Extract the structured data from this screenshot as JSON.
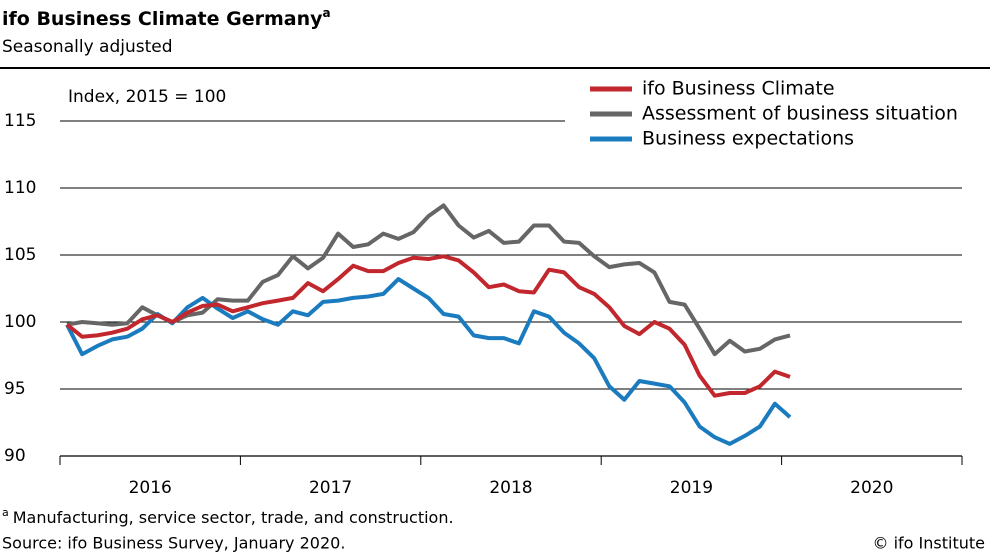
{
  "chart_data": {
    "type": "line",
    "title": "ifo Business Climate Germany",
    "footnote_marker": "a",
    "subtitle": "Seasonally adjusted",
    "y_axis_label": "Index, 2015 = 100",
    "x_labels": [
      "2016",
      "2017",
      "2018",
      "2019",
      "2020"
    ],
    "ylim": [
      90,
      115
    ],
    "yticks": [
      90,
      95,
      100,
      105,
      110,
      115
    ],
    "grid": true,
    "legend_position": "upper right",
    "series": [
      {
        "name": "ifo Business Climate",
        "color": "#c1272d",
        "values": [
          99.8,
          98.9,
          99.0,
          99.2,
          99.5,
          100.2,
          100.5,
          100.0,
          100.7,
          101.2,
          101.3,
          100.8,
          101.1,
          101.4,
          101.6,
          101.8,
          102.9,
          102.3,
          103.2,
          104.2,
          103.8,
          103.8,
          104.4,
          104.8,
          104.7,
          104.9,
          104.6,
          103.7,
          102.6,
          102.8,
          102.3,
          102.2,
          103.9,
          103.7,
          102.6,
          102.1,
          101.1,
          99.7,
          99.1,
          100.0,
          99.5,
          98.3,
          96.0,
          94.5,
          94.7,
          94.7,
          95.2,
          96.3,
          95.9
        ]
      },
      {
        "name": "Assessment of business situation",
        "color": "#666666",
        "values": [
          99.8,
          100.0,
          99.9,
          99.8,
          99.9,
          101.1,
          100.5,
          100.0,
          100.5,
          100.7,
          101.7,
          101.6,
          101.6,
          103.0,
          103.5,
          104.9,
          104.0,
          104.8,
          106.6,
          105.6,
          105.8,
          106.6,
          106.2,
          106.7,
          107.9,
          108.7,
          107.2,
          106.3,
          106.8,
          105.9,
          106.0,
          107.2,
          107.2,
          106.0,
          105.9,
          104.9,
          104.1,
          104.3,
          104.4,
          103.7,
          101.5,
          101.3,
          99.5,
          97.6,
          98.6,
          97.8,
          98.0,
          98.7,
          99.0
        ]
      },
      {
        "name": "Business expectations",
        "color": "#1b7bbf",
        "values": [
          99.8,
          97.6,
          98.2,
          98.7,
          98.9,
          99.5,
          100.6,
          99.9,
          101.1,
          101.8,
          101.0,
          100.3,
          100.8,
          100.2,
          99.8,
          100.8,
          100.5,
          101.5,
          101.6,
          101.8,
          101.9,
          102.1,
          103.2,
          102.5,
          101.8,
          100.6,
          100.4,
          99.0,
          98.8,
          98.8,
          98.4,
          100.8,
          100.4,
          99.2,
          98.4,
          97.3,
          95.2,
          94.2,
          95.6,
          95.4,
          95.2,
          94.0,
          92.2,
          91.4,
          90.9,
          91.5,
          92.2,
          93.9,
          92.9
        ]
      }
    ],
    "footnote": "Manufacturing, service sector, trade, and construction.",
    "source": "Source: ifo Business Survey, January 2020.",
    "credit": "© ifo Institute"
  }
}
